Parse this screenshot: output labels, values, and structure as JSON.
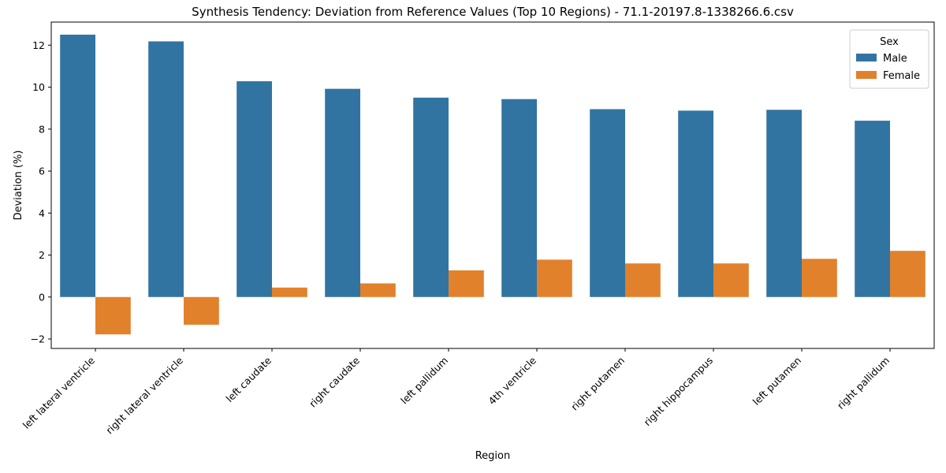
{
  "chart_data": {
    "type": "bar",
    "title": "Synthesis Tendency: Deviation from Reference Values (Top 10 Regions) - 71.1-20197.8-1338266.6.csv",
    "xlabel": "Region",
    "ylabel": "Deviation (%)",
    "ylim": [
      -2.45,
      13.1
    ],
    "yticks": [
      -2,
      0,
      2,
      4,
      6,
      8,
      10,
      12
    ],
    "grid": false,
    "legend": {
      "title": "Sex",
      "position": "top-right"
    },
    "categories": [
      "left lateral ventricle",
      "right lateral ventricle",
      "left caudate",
      "right caudate",
      "left pallidum",
      "4th ventricle",
      "right putamen",
      "right hippocampus",
      "left putamen",
      "right pallidum"
    ],
    "series": [
      {
        "name": "Male",
        "color": "#3274a1",
        "values": [
          12.5,
          12.18,
          10.28,
          9.92,
          9.5,
          9.43,
          8.95,
          8.88,
          8.92,
          8.4
        ]
      },
      {
        "name": "Female",
        "color": "#e1812c",
        "values": [
          -1.78,
          -1.32,
          0.45,
          0.65,
          1.27,
          1.78,
          1.6,
          1.6,
          1.82,
          2.2
        ]
      }
    ]
  }
}
